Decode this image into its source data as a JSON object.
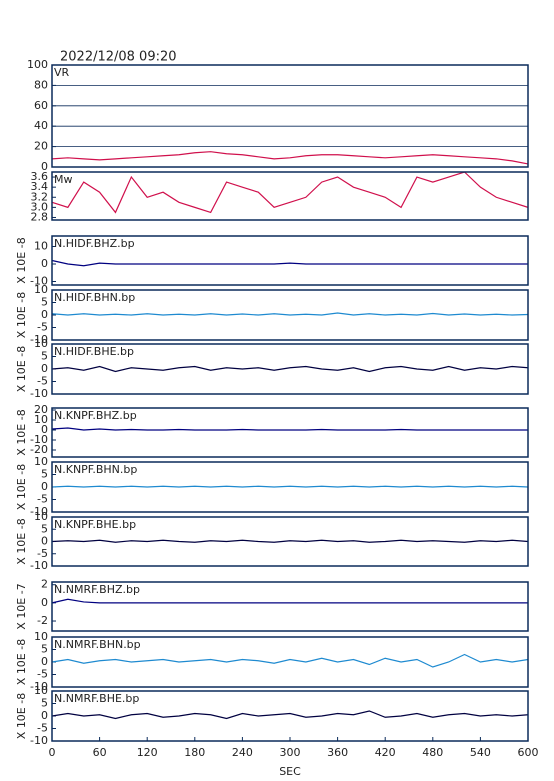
{
  "chart_data": [
    {
      "type": "line",
      "title": "2022/12/08 09:20",
      "name": "VR",
      "xlim": [
        0,
        600
      ],
      "ylim": [
        0,
        100
      ],
      "yticks": [
        0,
        20,
        40,
        60,
        80,
        100
      ],
      "grid": true,
      "x": [
        0,
        20,
        40,
        60,
        80,
        100,
        120,
        140,
        160,
        180,
        200,
        220,
        240,
        260,
        280,
        300,
        320,
        340,
        360,
        380,
        400,
        420,
        440,
        460,
        480,
        500,
        520,
        540,
        560,
        580,
        600
      ],
      "series": [
        {
          "color": "#d0104c",
          "values": [
            8,
            9,
            8,
            7,
            8,
            9,
            10,
            11,
            12,
            14,
            15,
            13,
            12,
            10,
            8,
            9,
            11,
            12,
            12,
            11,
            10,
            9,
            10,
            11,
            12,
            11,
            10,
            9,
            8,
            6,
            3
          ]
        }
      ]
    },
    {
      "type": "line",
      "name": "Mw",
      "xlim": [
        0,
        600
      ],
      "ylim": [
        2.75,
        3.7
      ],
      "yticks": [
        2.8,
        {
          "value": 3.0,
          "label": "3.0"
        },
        3.2,
        3.4,
        3.6
      ],
      "x": [
        0,
        20,
        40,
        60,
        80,
        100,
        120,
        140,
        160,
        180,
        200,
        220,
        240,
        260,
        280,
        300,
        320,
        340,
        360,
        380,
        400,
        420,
        440,
        460,
        480,
        500,
        520,
        540,
        560,
        580,
        600
      ],
      "series": [
        {
          "color": "#d0104c",
          "values": [
            3.1,
            3.0,
            3.5,
            3.3,
            2.9,
            3.6,
            3.2,
            3.3,
            3.1,
            3.0,
            2.9,
            3.5,
            3.4,
            3.3,
            3.0,
            3.1,
            3.2,
            3.5,
            3.6,
            3.4,
            3.3,
            3.2,
            3.0,
            3.6,
            3.5,
            3.6,
            3.7,
            3.4,
            3.2,
            3.1,
            3.0
          ]
        }
      ]
    },
    {
      "type": "line",
      "name": "N.HIDF.BHZ.bp",
      "ylabel": "X 10E -8",
      "xlim": [
        0,
        600
      ],
      "ylim": [
        -12,
        16
      ],
      "yticks": [
        -10,
        0,
        10
      ],
      "x": [
        0,
        20,
        40,
        60,
        80,
        100,
        120,
        140,
        160,
        180,
        200,
        220,
        240,
        260,
        280,
        300,
        320,
        340,
        360,
        380,
        400,
        420,
        440,
        460,
        480,
        500,
        520,
        540,
        560,
        580,
        600
      ],
      "series": [
        {
          "color": "#000080",
          "values": [
            2,
            0,
            -1,
            0.5,
            0,
            0,
            0,
            0,
            0,
            0,
            0,
            0,
            0,
            0,
            0,
            0.5,
            0,
            0,
            0,
            0,
            0,
            0,
            0,
            0,
            0,
            0,
            0,
            0,
            0,
            0,
            0
          ]
        }
      ]
    },
    {
      "type": "line",
      "name": "N.HIDF.BHN.bp",
      "ylabel": "X 10E -8",
      "xlim": [
        0,
        600
      ],
      "ylim": [
        -10,
        10
      ],
      "yticks": [
        -10,
        -5,
        0,
        5,
        10
      ],
      "x": [
        0,
        20,
        40,
        60,
        80,
        100,
        120,
        140,
        160,
        180,
        200,
        220,
        240,
        260,
        280,
        300,
        320,
        340,
        360,
        380,
        400,
        420,
        440,
        460,
        480,
        500,
        520,
        540,
        560,
        580,
        600
      ],
      "series": [
        {
          "color": "#1e8ad0",
          "values": [
            0.5,
            0,
            0.5,
            0,
            0.3,
            0,
            0.5,
            0,
            0.3,
            0,
            0.5,
            0,
            0.4,
            0,
            0.5,
            0,
            0.3,
            0,
            0.8,
            0,
            0.5,
            0,
            0.3,
            0,
            0.6,
            0,
            0.4,
            0,
            0.3,
            0,
            0.2
          ]
        }
      ]
    },
    {
      "type": "line",
      "name": "N.HIDF.BHE.bp",
      "ylabel": "X 10E -8",
      "xlim": [
        0,
        600
      ],
      "ylim": [
        -10,
        10
      ],
      "yticks": [
        -10,
        -5,
        0,
        5,
        10
      ],
      "x": [
        0,
        20,
        40,
        60,
        80,
        100,
        120,
        140,
        160,
        180,
        200,
        220,
        240,
        260,
        280,
        300,
        320,
        340,
        360,
        380,
        400,
        420,
        440,
        460,
        480,
        500,
        520,
        540,
        560,
        580,
        600
      ],
      "series": [
        {
          "color": "#000040",
          "values": [
            0,
            0.5,
            -0.5,
            1,
            -1,
            0.5,
            0,
            -0.5,
            0.5,
            1,
            -0.5,
            0.5,
            0,
            0.5,
            -0.5,
            0.5,
            1,
            0,
            -0.5,
            0.5,
            -1,
            0.5,
            1,
            0,
            -0.5,
            1,
            -0.5,
            0.5,
            0,
            1,
            0.5
          ]
        }
      ]
    },
    {
      "type": "line",
      "name": "N.KNPF.BHZ.bp",
      "ylabel": "X 10E -8",
      "xlim": [
        0,
        600
      ],
      "ylim": [
        -27,
        22
      ],
      "yticks": [
        -20,
        -10,
        0,
        10,
        20
      ],
      "x": [
        0,
        20,
        40,
        60,
        80,
        100,
        120,
        140,
        160,
        180,
        200,
        220,
        240,
        260,
        280,
        300,
        320,
        340,
        360,
        380,
        400,
        420,
        440,
        460,
        480,
        500,
        520,
        540,
        560,
        580,
        600
      ],
      "series": [
        {
          "color": "#000080",
          "values": [
            1,
            2,
            0,
            1,
            0,
            0.5,
            0,
            0,
            0.5,
            0,
            0,
            0,
            0.5,
            0,
            0,
            0,
            0,
            0.5,
            0,
            0,
            0,
            0,
            0.5,
            0,
            0,
            0,
            0,
            0,
            0,
            0,
            0
          ]
        }
      ]
    },
    {
      "type": "line",
      "name": "N.KNPF.BHN.bp",
      "ylabel": "X 10E -8",
      "xlim": [
        0,
        600
      ],
      "ylim": [
        -10,
        10
      ],
      "yticks": [
        -10,
        -5,
        0,
        5,
        10
      ],
      "x": [
        0,
        20,
        40,
        60,
        80,
        100,
        120,
        140,
        160,
        180,
        200,
        220,
        240,
        260,
        280,
        300,
        320,
        340,
        360,
        380,
        400,
        420,
        440,
        460,
        480,
        500,
        520,
        540,
        560,
        580,
        600
      ],
      "series": [
        {
          "color": "#1e8ad0",
          "values": [
            0,
            0.3,
            0,
            0.3,
            0,
            0.3,
            0,
            0.3,
            0,
            0.3,
            0,
            0.3,
            0,
            0.3,
            0,
            0.3,
            0,
            0.3,
            0,
            0.3,
            0,
            0.3,
            0,
            0.3,
            0,
            0.3,
            0,
            0.3,
            0,
            0.3,
            0
          ]
        }
      ]
    },
    {
      "type": "line",
      "name": "N.KNPF.BHE.bp",
      "ylabel": "X 10E -8",
      "xlim": [
        0,
        600
      ],
      "ylim": [
        -10,
        10
      ],
      "yticks": [
        -10,
        -5,
        0,
        5,
        10
      ],
      "x": [
        0,
        20,
        40,
        60,
        80,
        100,
        120,
        140,
        160,
        180,
        200,
        220,
        240,
        260,
        280,
        300,
        320,
        340,
        360,
        380,
        400,
        420,
        440,
        460,
        480,
        500,
        520,
        540,
        560,
        580,
        600
      ],
      "series": [
        {
          "color": "#000040",
          "values": [
            0,
            0.3,
            0,
            0.5,
            -0.3,
            0.3,
            0,
            0.5,
            0,
            -0.3,
            0.3,
            0,
            0.5,
            0,
            -0.3,
            0.3,
            0,
            0.5,
            0,
            0.3,
            -0.3,
            0,
            0.5,
            0,
            0.3,
            0,
            -0.3,
            0.3,
            0,
            0.5,
            0
          ]
        }
      ]
    },
    {
      "type": "line",
      "name": "N.NMRF.BHZ.bp",
      "ylabel": "X 10E -7",
      "xlim": [
        0,
        600
      ],
      "ylim": [
        -3.1,
        2.3
      ],
      "yticks": [
        -2,
        0,
        2
      ],
      "x": [
        0,
        20,
        40,
        60,
        80,
        100,
        120,
        140,
        160,
        180,
        200,
        220,
        240,
        260,
        280,
        300,
        320,
        340,
        360,
        380,
        400,
        420,
        440,
        460,
        480,
        500,
        520,
        540,
        560,
        580,
        600
      ],
      "series": [
        {
          "color": "#000080",
          "values": [
            0,
            0.4,
            0.1,
            0,
            0,
            0,
            0,
            0,
            0,
            0,
            0,
            0,
            0,
            0,
            0,
            0,
            0,
            0,
            0,
            0,
            0,
            0,
            0,
            0,
            0,
            0,
            0,
            0,
            0,
            0,
            0
          ]
        }
      ]
    },
    {
      "type": "line",
      "name": "N.NMRF.BHN.bp",
      "ylabel": "X 10E -8",
      "xlim": [
        0,
        600
      ],
      "ylim": [
        -10,
        10
      ],
      "yticks": [
        -10,
        -5,
        0,
        5,
        10
      ],
      "x": [
        0,
        20,
        40,
        60,
        80,
        100,
        120,
        140,
        160,
        180,
        200,
        220,
        240,
        260,
        280,
        300,
        320,
        340,
        360,
        380,
        400,
        420,
        440,
        460,
        480,
        500,
        520,
        540,
        560,
        580,
        600
      ],
      "series": [
        {
          "color": "#1e8ad0",
          "values": [
            0,
            1,
            -0.5,
            0.5,
            1,
            0,
            0.5,
            1,
            0,
            0.5,
            1,
            0,
            1,
            0.5,
            -0.5,
            1,
            0,
            1.5,
            0,
            1,
            -1,
            1.5,
            0,
            1,
            -2,
            0,
            3,
            0,
            1,
            0,
            1
          ]
        }
      ]
    },
    {
      "type": "line",
      "name": "N.NMRF.BHE.bp",
      "ylabel": "X 10E -8",
      "xlim": [
        0,
        600
      ],
      "ylim": [
        -10,
        10
      ],
      "yticks": [
        -10,
        -5,
        0,
        5,
        10
      ],
      "x": [
        0,
        20,
        40,
        60,
        80,
        100,
        120,
        140,
        160,
        180,
        200,
        220,
        240,
        260,
        280,
        300,
        320,
        340,
        360,
        380,
        400,
        420,
        440,
        460,
        480,
        500,
        520,
        540,
        560,
        580,
        600
      ],
      "xticks": [
        0,
        60,
        120,
        180,
        240,
        300,
        360,
        420,
        480,
        540,
        600
      ],
      "xlabel": "SEC",
      "series": [
        {
          "color": "#000040",
          "values": [
            0,
            1,
            0,
            0.5,
            -1,
            0.5,
            1,
            -0.5,
            0,
            1,
            0.5,
            -1,
            1,
            0,
            0.5,
            1,
            -0.5,
            0,
            1,
            0.5,
            2,
            -0.5,
            0,
            1,
            -0.5,
            0.5,
            1,
            0,
            0.5,
            0,
            0.5
          ]
        }
      ]
    }
  ]
}
